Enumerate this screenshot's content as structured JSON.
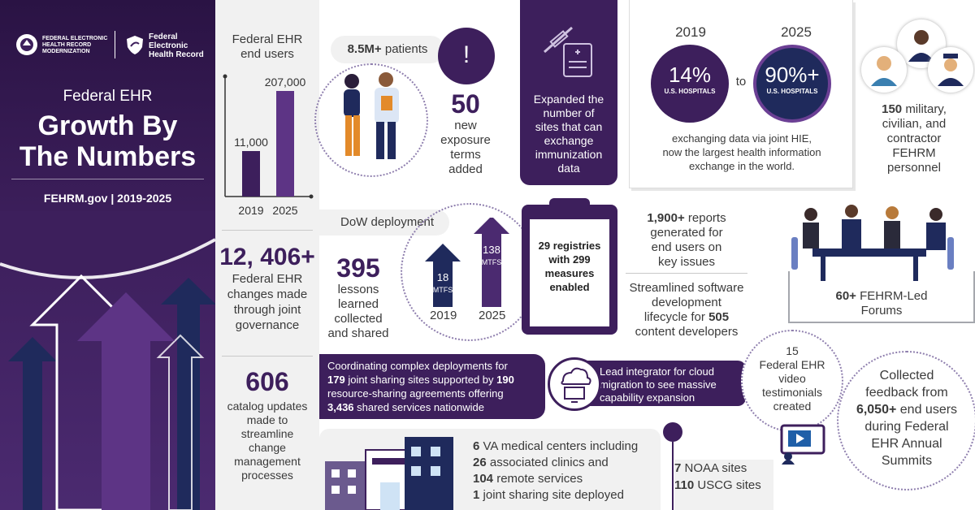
{
  "logos": {
    "fehrm_line1": "FEDERAL ELECTRONIC",
    "fehrm_line2": "HEALTH RECORD",
    "fehrm_line3": "MODERNIZATION",
    "fed_line1": "Federal",
    "fed_line2": "Electronic",
    "fed_line3": "Health Record"
  },
  "hero": {
    "subtitle": "Federal EHR",
    "title_line1": "Growth By",
    "title_line2": "The Numbers",
    "site": "FEHRM.gov",
    "divider": "|",
    "years": "2019-2025"
  },
  "end_users": {
    "title_line1": "Federal EHR",
    "title_line2": "end users",
    "chart_data": {
      "type": "bar",
      "categories": [
        "2019",
        "2025"
      ],
      "values": [
        11000,
        207000
      ],
      "value_labels": [
        "11,000",
        "207,000"
      ]
    }
  },
  "changes": {
    "number": "12, 406+",
    "text": [
      "Federal EHR",
      "changes made",
      "through joint",
      "governance"
    ]
  },
  "catalog": {
    "number": "606",
    "text": [
      "catalog updates",
      "made to",
      "streamline",
      "change",
      "management",
      "processes"
    ]
  },
  "patients": {
    "number": "8.5M+",
    "label": "patients"
  },
  "exposure": {
    "number": "50",
    "text": [
      "new",
      "exposure",
      "terms",
      "added"
    ],
    "icon": "!"
  },
  "immunization": {
    "text": [
      "Expanded the",
      "number of",
      "sites that can",
      "exchange",
      "immunization",
      "data"
    ]
  },
  "hospitals": {
    "year1": "2019",
    "year2": "2025",
    "pct1": "14%",
    "pct2": "90%+",
    "unit": "U.S. HOSPITALS",
    "to": "to",
    "text": [
      "exchanging data via joint HIE,",
      "now the largest health information",
      "exchange in the world."
    ]
  },
  "personnel": {
    "number": "150",
    "text": [
      "military,",
      "civilian, and",
      "contractor",
      "FEHRM",
      "personnel"
    ]
  },
  "dow": {
    "title": "DoW deployment",
    "v2019": "18",
    "v2025": "138",
    "unit": "MTFS",
    "y2019": "2019",
    "y2025": "2025"
  },
  "lessons": {
    "number": "395",
    "text": [
      "lessons",
      "learned",
      "collected",
      "and shared"
    ]
  },
  "registries": {
    "n1": "29",
    "t1": "registries",
    "t2": "with",
    "n2": "299",
    "t3": "measures",
    "t4": "enabled"
  },
  "reports": {
    "number": "1,900+",
    "text": [
      "reports",
      "generated for",
      "end users on",
      "key issues"
    ]
  },
  "software": {
    "text1": "Streamlined software",
    "text2": "development",
    "text3": "lifecycle for",
    "number": "505",
    "text4": "content developers"
  },
  "forums": {
    "number": "60+",
    "label": "FEHRM-Led",
    "label2": "Forums"
  },
  "sharing": {
    "l1": "Coordinating complex deployments for",
    "n1": "179",
    "l2a": "joint sharing sites supported by",
    "n2": "190",
    "l3": "resource-sharing agreements offering",
    "n3": "3,436",
    "l4": "shared services nationwide"
  },
  "cloud": {
    "text": [
      "Lead integrator for cloud",
      "migration to see massive",
      "capability expansion"
    ]
  },
  "video": {
    "number": "15",
    "text": [
      "Federal EHR",
      "video",
      "testimonials",
      "created"
    ]
  },
  "feedback": {
    "l1": "Collected",
    "l2": "feedback from",
    "number": "6,050+",
    "l2b": "end users",
    "l3": "during Federal",
    "l4": "EHR Annual",
    "l5": "Summits"
  },
  "va": {
    "n1": "6",
    "t1": "VA medical centers including",
    "n2": "26",
    "t2": "associated clinics and",
    "n3": "104",
    "t3": "remote services",
    "n4": "1",
    "t4": "joint sharing site deployed"
  },
  "noaa": {
    "n1": "7",
    "t1": "NOAA sites",
    "n2": "110",
    "t2": "USCG sites"
  },
  "colors": {
    "primary": "#3d1f5c",
    "accent": "#6b3f94",
    "navy": "#1f2a5c",
    "light": "#f1f1f1"
  }
}
